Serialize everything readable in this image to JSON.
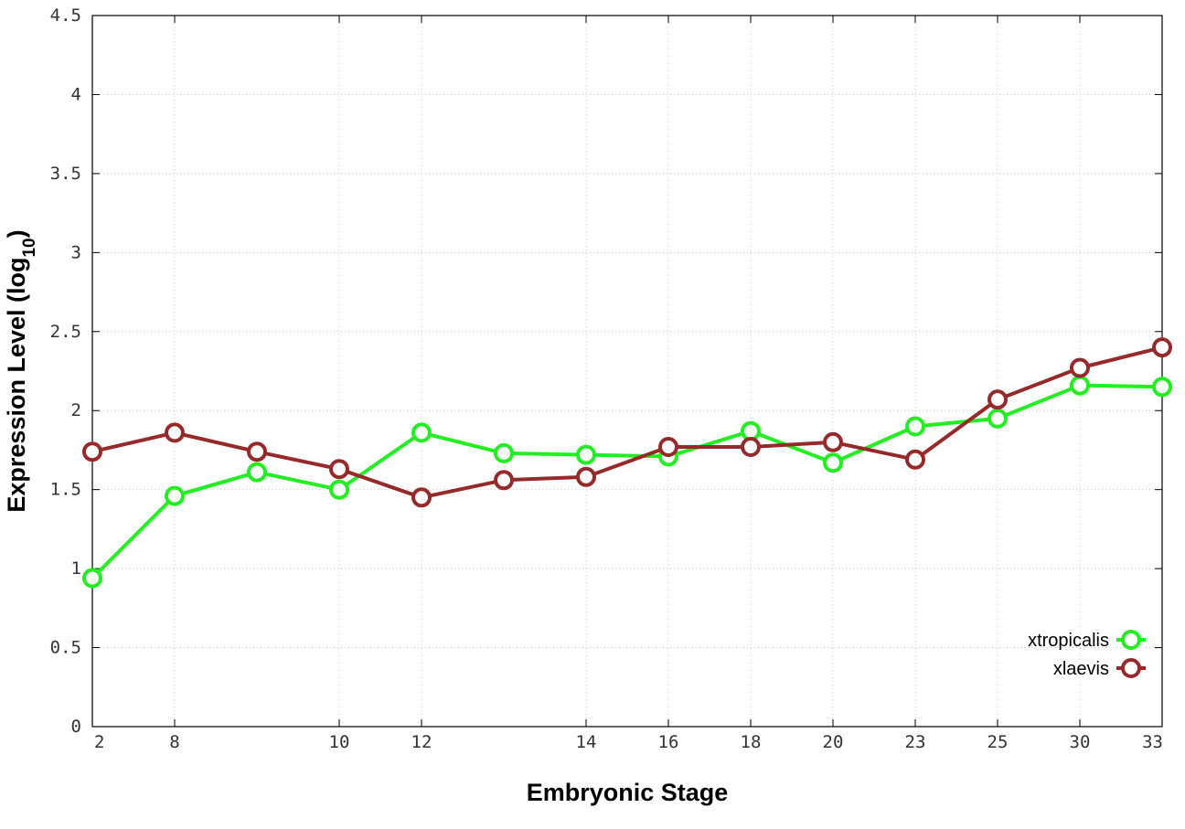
{
  "chart_data": {
    "type": "line",
    "title": "",
    "xlabel": "Embryonic Stage",
    "ylabel_main": "Expression Level (log",
    "ylabel_sub": "10",
    "ylabel_close": ")",
    "x_ticks": [
      2,
      8,
      10,
      12,
      14,
      16,
      18,
      20,
      23,
      25,
      30,
      33
    ],
    "x_tick_labels": [
      "2",
      "8",
      "10",
      "12",
      "14",
      "16",
      "18",
      "20",
      "23",
      "25",
      "30",
      "33"
    ],
    "x_positions": [
      2,
      8,
      9,
      10,
      12,
      13,
      14,
      16,
      18,
      20,
      23,
      25,
      30,
      33
    ],
    "y_ticks": [
      0,
      0.5,
      1,
      1.5,
      2,
      2.5,
      3,
      3.5,
      4,
      4.5
    ],
    "y_tick_labels": [
      "0",
      "0.5",
      "1",
      "1.5",
      "2",
      "2.5",
      "3",
      "3.5",
      "4",
      "4.5"
    ],
    "xlim": [
      2,
      33
    ],
    "ylim": [
      0,
      4.5
    ],
    "grid": true,
    "legend_position": "bottom-right",
    "series": [
      {
        "name": "xtropicalis",
        "color": "#22ee22",
        "x": [
          2,
          8,
          9,
          10,
          12,
          13,
          14,
          16,
          18,
          20,
          23,
          25,
          30,
          33
        ],
        "values": [
          0.94,
          1.46,
          1.61,
          1.5,
          1.86,
          1.73,
          1.72,
          1.71,
          1.87,
          1.67,
          1.9,
          1.95,
          2.16,
          2.15
        ]
      },
      {
        "name": "xlaevis",
        "color": "#962a2a",
        "x": [
          2,
          8,
          9,
          10,
          12,
          13,
          14,
          16,
          18,
          20,
          23,
          25,
          30,
          33
        ],
        "values": [
          1.74,
          1.86,
          1.74,
          1.63,
          1.45,
          1.56,
          1.58,
          1.77,
          1.77,
          1.8,
          1.69,
          2.07,
          2.27,
          2.4
        ]
      }
    ]
  }
}
